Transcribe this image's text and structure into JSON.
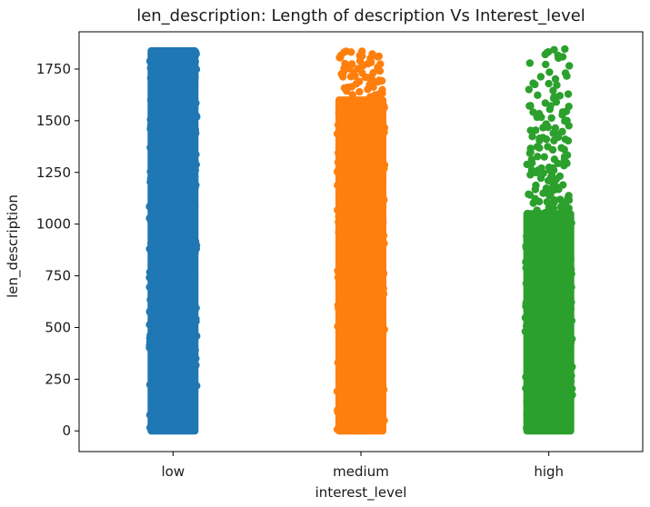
{
  "chart_data": {
    "type": "scatter",
    "subtype": "strip",
    "title": "len_description: Length of description Vs Interest_level",
    "xlabel": "interest_level",
    "ylabel": "len_description",
    "categories": [
      "low",
      "medium",
      "high"
    ],
    "ylim": [
      -100,
      1930
    ],
    "yticks": [
      0,
      250,
      500,
      750,
      1000,
      1250,
      1500,
      1750
    ],
    "grid": false,
    "series": [
      {
        "category": "low",
        "color": "#1f77b4",
        "dense_range": [
          0,
          1838
        ],
        "sparse_values": []
      },
      {
        "category": "medium",
        "color": "#ff7f0e",
        "dense_range": [
          0,
          1600
        ],
        "sparse_values": [
          1610,
          1625,
          1640,
          1655,
          1665,
          1680,
          1690,
          1700,
          1712,
          1722,
          1735,
          1745,
          1760,
          1770,
          1780,
          1795,
          1805,
          1815,
          1825,
          1838
        ]
      },
      {
        "category": "high",
        "color": "#2ca02c",
        "dense_range": [
          0,
          1050
        ],
        "sparse_values": [
          1060,
          1075,
          1085,
          1100,
          1110,
          1125,
          1135,
          1150,
          1165,
          1175,
          1190,
          1200,
          1215,
          1230,
          1240,
          1255,
          1265,
          1280,
          1295,
          1310,
          1320,
          1335,
          1350,
          1365,
          1380,
          1395,
          1410,
          1425,
          1440,
          1455,
          1470,
          1490,
          1505,
          1525,
          1545,
          1560,
          1580,
          1600,
          1625,
          1650,
          1680,
          1710,
          1740,
          1770,
          1800,
          1820,
          1838
        ]
      }
    ]
  }
}
